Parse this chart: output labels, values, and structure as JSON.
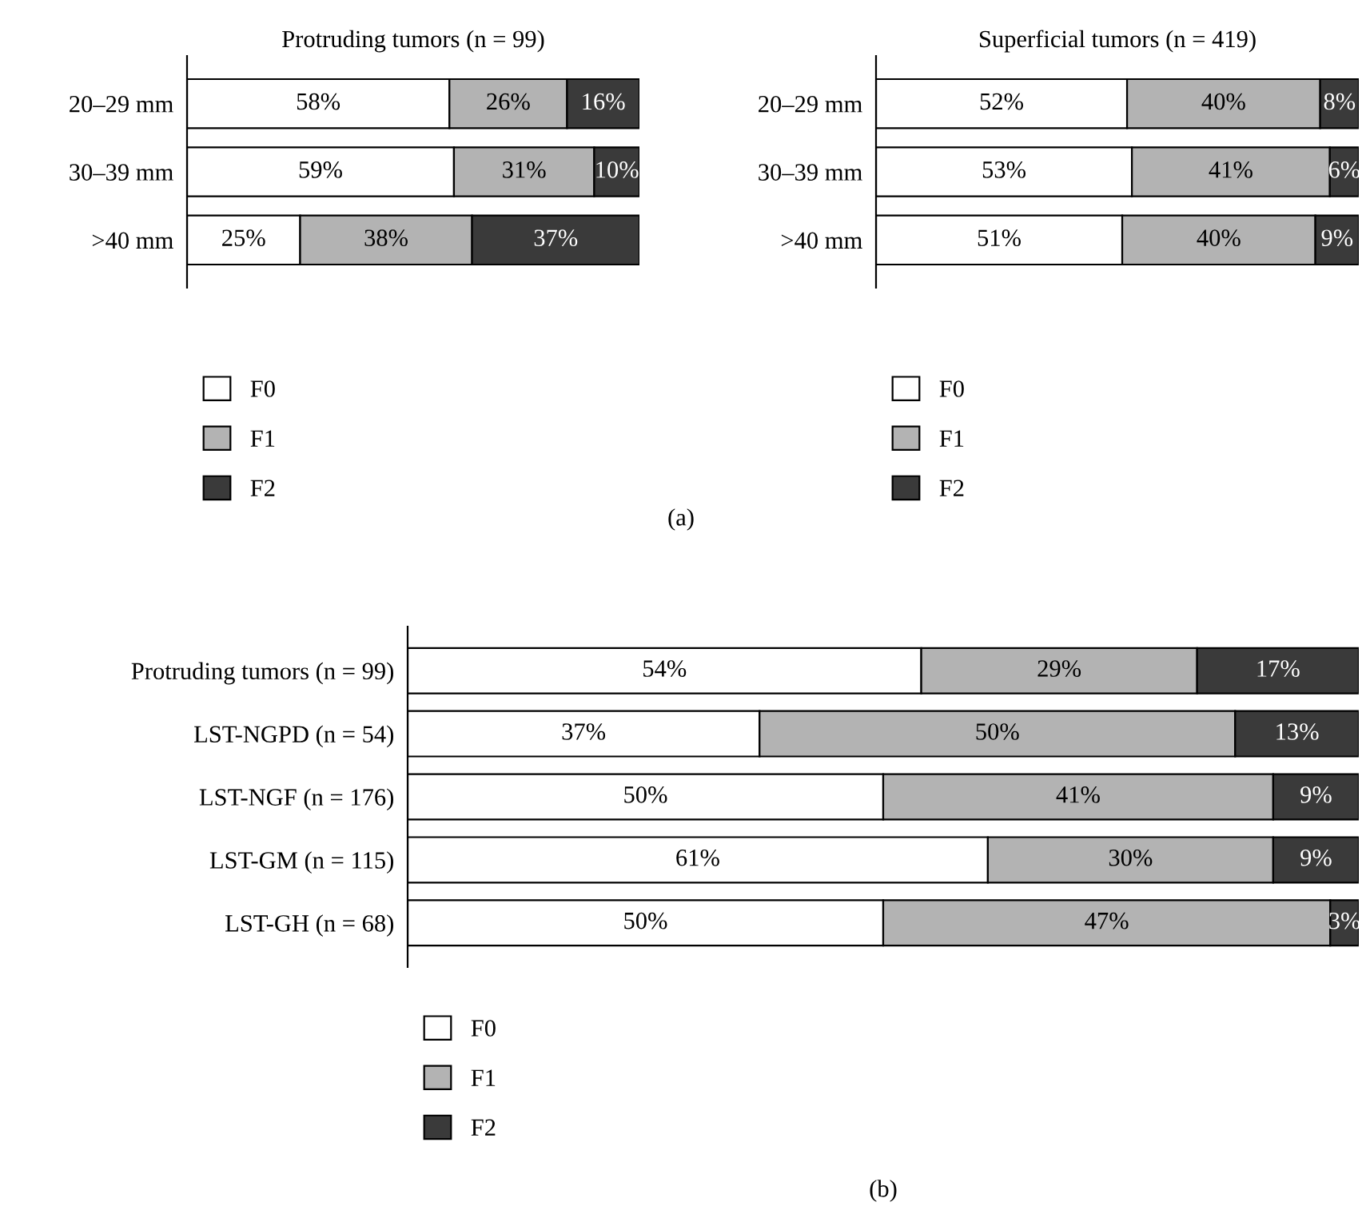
{
  "chart_data": [
    {
      "type": "bar",
      "orientation": "horizontal",
      "stacked": true,
      "title": "Protruding tumors (n = 99)",
      "categories": [
        "20–29 mm",
        "30–39 mm",
        ">40 mm"
      ],
      "tick_labels": "y",
      "grid": false,
      "legend": "bottom",
      "series": [
        {
          "name": "F0",
          "color": "#ffffff",
          "values": [
            58,
            59,
            25
          ],
          "value_labels": [
            "58%",
            "59%",
            "25%"
          ]
        },
        {
          "name": "F1",
          "color": "#b3b3b3",
          "values": [
            26,
            31,
            38
          ],
          "value_labels": [
            "26%",
            "31%",
            "38%"
          ]
        },
        {
          "name": "F2",
          "color": "#3a3a3a",
          "values": [
            16,
            10,
            37
          ],
          "value_labels": [
            "16%",
            "10%",
            "37%"
          ]
        }
      ],
      "annotations": [
        "(a)"
      ]
    },
    {
      "type": "bar",
      "orientation": "horizontal",
      "stacked": true,
      "title": "Superficial tumors (n = 419)",
      "categories": [
        "20–29 mm",
        "30–39 mm",
        ">40 mm"
      ],
      "tick_labels": "y",
      "grid": false,
      "legend": "bottom",
      "series": [
        {
          "name": "F0",
          "color": "#ffffff",
          "values": [
            52,
            53,
            51
          ],
          "value_labels": [
            "52%",
            "53%",
            "51%"
          ]
        },
        {
          "name": "F1",
          "color": "#b3b3b3",
          "values": [
            40,
            41,
            40
          ],
          "value_labels": [
            "40%",
            "41%",
            "40%"
          ]
        },
        {
          "name": "F2",
          "color": "#3a3a3a",
          "values": [
            8,
            6,
            9
          ],
          "value_labels": [
            "8%",
            "6%",
            "9%"
          ]
        }
      ]
    },
    {
      "type": "bar",
      "orientation": "horizontal",
      "stacked": true,
      "categories": [
        "Protruding tumors (n = 99)",
        "LST-NGPD (n = 54)",
        "LST-NGF (n = 176)",
        "LST-GM (n = 115)",
        "LST-GH (n = 68)"
      ],
      "tick_labels": "y",
      "grid": false,
      "legend": "bottom",
      "series": [
        {
          "name": "F0",
          "color": "#ffffff",
          "values": [
            54,
            37,
            50,
            61,
            50
          ],
          "value_labels": [
            "54%",
            "37%",
            "50%",
            "61%",
            "50%"
          ]
        },
        {
          "name": "F1",
          "color": "#b3b3b3",
          "values": [
            29,
            50,
            41,
            30,
            47
          ],
          "value_labels": [
            "29%",
            "50%",
            "41%",
            "30%",
            "47%"
          ]
        },
        {
          "name": "F2",
          "color": "#3a3a3a",
          "values": [
            17,
            13,
            9,
            9,
            3
          ],
          "value_labels": [
            "17%",
            "13%",
            "9%",
            "9%",
            "3%"
          ]
        }
      ],
      "annotations": [
        "(b)"
      ]
    }
  ]
}
